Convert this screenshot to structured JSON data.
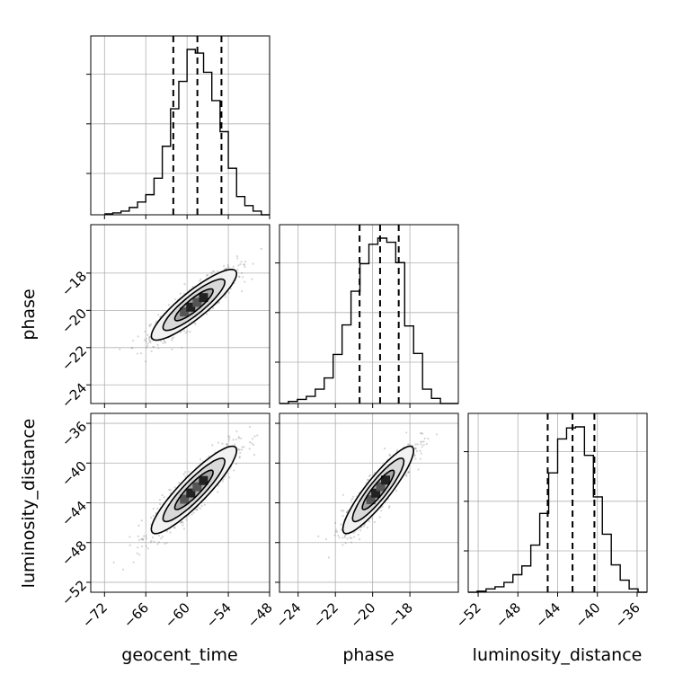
{
  "chart_data": {
    "type": "corner",
    "parameters": [
      "geocent_time",
      "phase",
      "luminosity_distance"
    ],
    "axis_labels": {
      "x": [
        "geocent_time",
        "phase",
        "luminosity_distance"
      ],
      "y": [
        "",
        "phase",
        "luminosity_distance"
      ]
    },
    "grid": true,
    "colors": {
      "hist": "#000000",
      "grid": "#b0b0b0",
      "points": "#888888",
      "contour_fill_1": "#d9d9d9",
      "contour_fill_2": "#a6a6a6"
    },
    "ranges": {
      "geocent_time": [
        -74,
        -48
      ],
      "phase": [
        -25,
        -15.4
      ],
      "luminosity_distance": [
        -53,
        -35
      ]
    },
    "ticks": {
      "geocent_time": [
        -72,
        -66,
        -60,
        -54,
        -48
      ],
      "phase": [
        -24,
        -22,
        -20,
        -18
      ],
      "luminosity_distance": [
        -52,
        -48,
        -44,
        -40,
        -36
      ]
    },
    "tick_labels": {
      "geocent_time": [
        "−72",
        "−66",
        "−60",
        "−54",
        "−48"
      ],
      "phase": [
        "−24",
        "−22",
        "−20",
        "−18"
      ],
      "luminosity_distance": [
        "−52",
        "−48",
        "−44",
        "−40",
        "−36"
      ]
    },
    "quantiles": {
      "geocent_time": [
        -62.0,
        -58.5,
        -55.0
      ],
      "phase": [
        -20.7,
        -19.6,
        -18.6
      ],
      "luminosity_distance": [
        -45.0,
        -42.5,
        -40.3
      ]
    },
    "histograms": {
      "geocent_time": {
        "edges": [
          -72,
          -70.8,
          -69.6,
          -68.4,
          -67.2,
          -66,
          -64.8,
          -63.6,
          -62.4,
          -61.2,
          -60,
          -58.8,
          -57.6,
          -56.4,
          -55.2,
          -54,
          -52.8,
          -51.6,
          -50.4,
          -49.2,
          -48
        ],
        "counts": [
          1,
          2,
          4,
          8,
          14,
          22,
          40,
          75,
          116,
          146,
          181,
          177,
          156,
          125,
          91,
          51,
          20,
          10,
          4,
          0
        ]
      },
      "phase": {
        "edges": [
          -25.0,
          -24.52,
          -24.04,
          -23.56,
          -23.08,
          -22.6,
          -22.12,
          -21.64,
          -21.16,
          -20.68,
          -20.2,
          -19.72,
          -19.24,
          -18.76,
          -18.28,
          -17.8,
          -17.32,
          -16.84,
          -16.36,
          -15.88,
          -15.4
        ],
        "counts": [
          0,
          2,
          4,
          7,
          14,
          25,
          48,
          77,
          110,
          137,
          156,
          162,
          158,
          138,
          76,
          49,
          14,
          5,
          0,
          0
        ]
      },
      "luminosity_distance": {
        "edges": [
          -53,
          -52.1,
          -51.2,
          -50.3,
          -49.4,
          -48.5,
          -47.6,
          -46.7,
          -45.8,
          -44.9,
          -44,
          -43.1,
          -42.2,
          -41.3,
          -40.4,
          -39.5,
          -38.6,
          -37.7,
          -36.8,
          -35.9,
          -35
        ],
        "counts": [
          0,
          1,
          3,
          5,
          9,
          16,
          24,
          43,
          72,
          109,
          140,
          150,
          151,
          125,
          87,
          53,
          25,
          11,
          3,
          0
        ]
      }
    },
    "pairs": [
      {
        "x": "geocent_time",
        "y": "phase",
        "mean": [
          -59.0,
          -19.7
        ],
        "std": [
          3.1,
          0.95
        ],
        "corr": 0.88
      },
      {
        "x": "geocent_time",
        "y": "luminosity_distance",
        "mean": [
          -59.0,
          -42.7
        ],
        "std": [
          3.1,
          2.2
        ],
        "corr": 0.9
      },
      {
        "x": "phase",
        "y": "luminosity_distance",
        "mean": [
          -19.7,
          -42.7
        ],
        "std": [
          0.95,
          2.2
        ],
        "corr": 0.9
      }
    ]
  }
}
